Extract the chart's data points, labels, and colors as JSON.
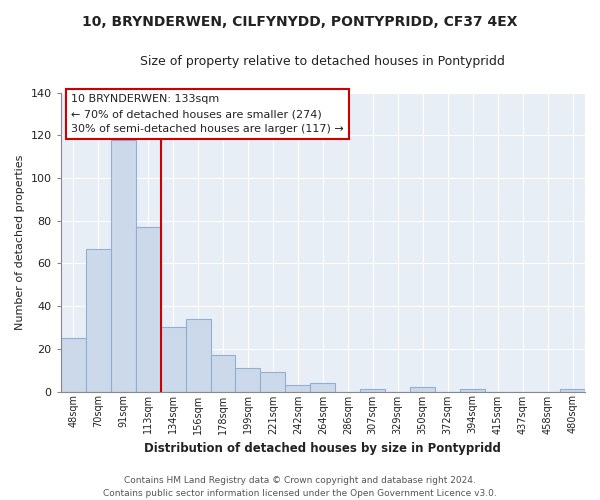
{
  "title": "10, BRYNDERWEN, CILFYNYDD, PONTYPRIDD, CF37 4EX",
  "subtitle": "Size of property relative to detached houses in Pontypridd",
  "xlabel": "Distribution of detached houses by size in Pontypridd",
  "ylabel": "Number of detached properties",
  "bar_labels": [
    "48sqm",
    "70sqm",
    "91sqm",
    "113sqm",
    "134sqm",
    "156sqm",
    "178sqm",
    "199sqm",
    "221sqm",
    "242sqm",
    "264sqm",
    "286sqm",
    "307sqm",
    "329sqm",
    "350sqm",
    "372sqm",
    "394sqm",
    "415sqm",
    "437sqm",
    "458sqm",
    "480sqm"
  ],
  "bar_values": [
    25,
    67,
    118,
    77,
    30,
    34,
    17,
    11,
    9,
    3,
    4,
    0,
    1,
    0,
    2,
    0,
    1,
    0,
    0,
    0,
    1
  ],
  "bar_color": "#ccd9ea",
  "bar_edge_color": "#8fafd4",
  "vline_color": "#cc0000",
  "annotation_title": "10 BRYNDERWEN: 133sqm",
  "annotation_line1": "← 70% of detached houses are smaller (274)",
  "annotation_line2": "30% of semi-detached houses are larger (117) →",
  "annotation_box_color": "#ffffff",
  "annotation_box_edge": "#cc0000",
  "ylim": [
    0,
    140
  ],
  "yticks": [
    0,
    20,
    40,
    60,
    80,
    100,
    120,
    140
  ],
  "footer_line1": "Contains HM Land Registry data © Crown copyright and database right 2024.",
  "footer_line2": "Contains public sector information licensed under the Open Government Licence v3.0.",
  "background_color": "#ffffff",
  "plot_bg_color": "#e8eef5",
  "grid_color": "#ffffff"
}
